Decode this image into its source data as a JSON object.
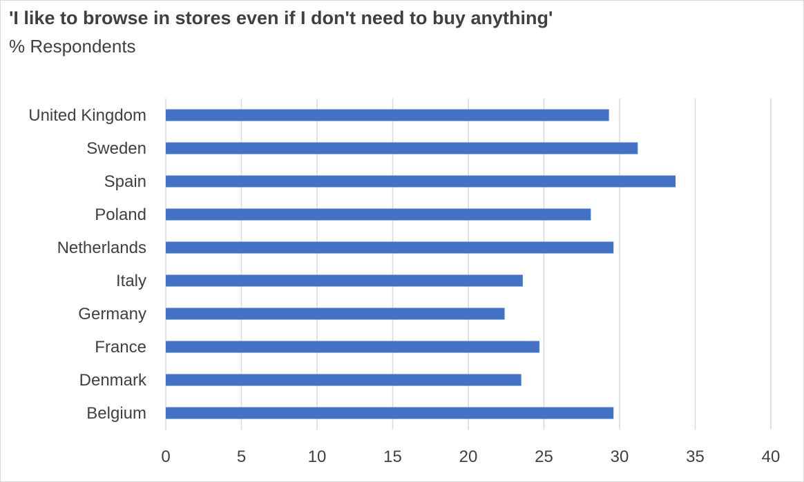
{
  "chart_data": {
    "type": "bar",
    "orientation": "horizontal",
    "title": "'I like to browse in stores even if I don't need to buy anything'",
    "subtitle": "% Respondents",
    "xlabel": "",
    "ylabel": "",
    "categories": [
      "United Kingdom",
      "Sweden",
      "Spain",
      "Poland",
      "Netherlands",
      "Italy",
      "Germany",
      "France",
      "Denmark",
      "Belgium"
    ],
    "values": [
      29.3,
      31.2,
      33.7,
      28.1,
      29.6,
      23.6,
      22.4,
      24.7,
      23.5,
      29.6
    ],
    "xlim": [
      0,
      40
    ],
    "xticks": [
      "0",
      "5",
      "10",
      "15",
      "20",
      "25",
      "30",
      "35",
      "40"
    ],
    "grid": true,
    "legend": "none",
    "bar_color": "#4472c4",
    "grid_color": "#d9d9d9"
  }
}
